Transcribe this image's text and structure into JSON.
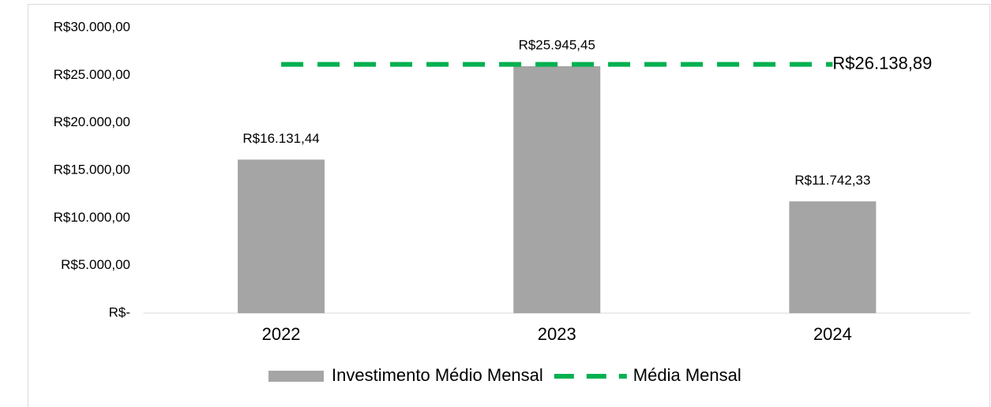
{
  "chart_data": {
    "type": "bar",
    "categories": [
      "2022",
      "2023",
      "2024"
    ],
    "series": [
      {
        "name": "Investimento Médio Mensal",
        "type": "bar",
        "color": "#a5a5a5",
        "values": [
          16131.44,
          25945.45,
          11742.33
        ],
        "value_labels": [
          "R$16.131,44",
          "R$25.945,45",
          "R$11.742,33"
        ]
      },
      {
        "name": "Média Mensal",
        "type": "line",
        "color": "#00b050",
        "dashed": true,
        "values": [
          26138.89,
          26138.89,
          26138.89
        ],
        "value_labels": [
          null,
          null,
          "R$26.138,89"
        ]
      }
    ],
    "ylim": [
      0,
      30000
    ],
    "yticks": [
      {
        "value": 0,
        "label": "R$-"
      },
      {
        "value": 5000,
        "label": "R$5.000,00"
      },
      {
        "value": 10000,
        "label": "R$10.000,00"
      },
      {
        "value": 15000,
        "label": "R$15.000,00"
      },
      {
        "value": 20000,
        "label": "R$20.000,00"
      },
      {
        "value": 25000,
        "label": "R$25.000,00"
      },
      {
        "value": 30000,
        "label": "R$30.000,00"
      }
    ],
    "grid": false,
    "legend": "bottom"
  }
}
